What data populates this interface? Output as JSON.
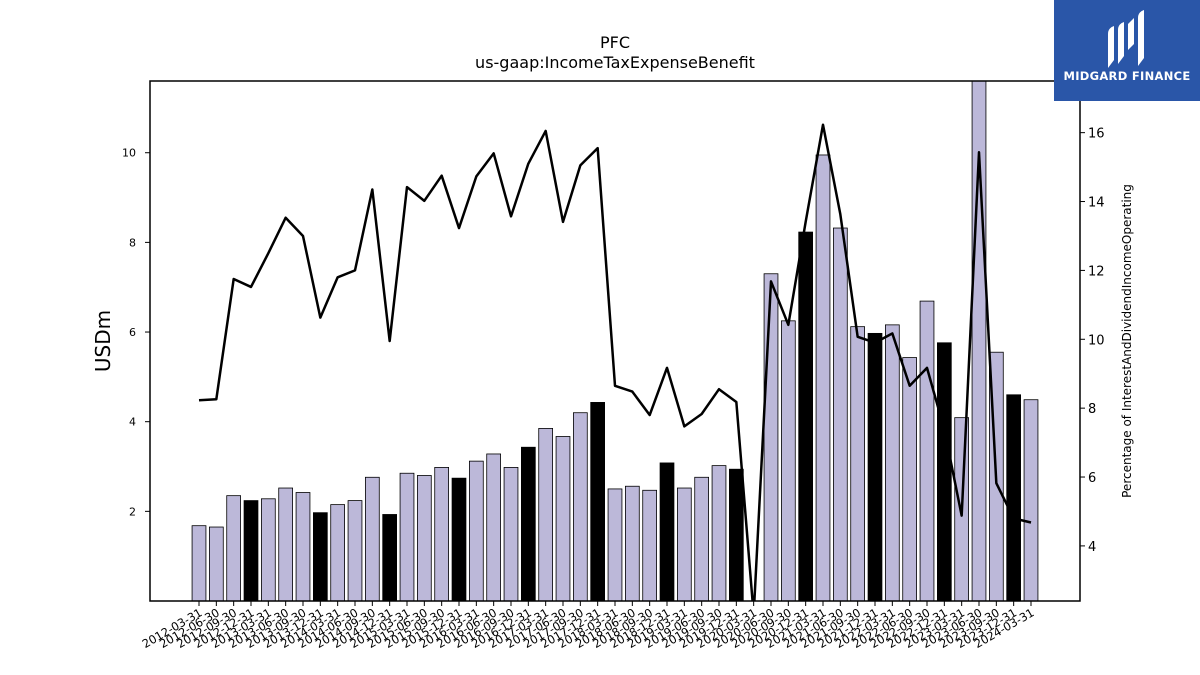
{
  "logo": {
    "text": "MIDGARD FINANCE",
    "background": "#2a56a8",
    "icon": "midgard-logo-icon"
  },
  "chart_data": {
    "type": "bar",
    "title": "PFC",
    "subtitle": "us-gaap:IncomeTaxExpenseBenefit",
    "ylabel": "USDm",
    "y2label": "Percentage of InterestAndDividendIncomeOperating",
    "ylim": [
      0,
      11.6
    ],
    "y2lim": [
      2.4,
      17.5
    ],
    "yticks": [
      2,
      4,
      6,
      8,
      10
    ],
    "y2ticks": [
      4,
      6,
      8,
      10,
      12,
      14,
      16
    ],
    "bar_color": "#bcb8d9",
    "highlight_color": "#000000",
    "categories": [
      "2012-03-31",
      "2012-06-30",
      "2012-09-30",
      "2012-12-31",
      "2013-03-31",
      "2013-06-30",
      "2013-09-30",
      "2013-12-31",
      "2014-03-31",
      "2014-06-30",
      "2014-09-30",
      "2014-12-31",
      "2015-03-31",
      "2015-06-30",
      "2015-09-30",
      "2015-12-31",
      "2016-03-31",
      "2016-06-30",
      "2016-09-30",
      "2016-12-31",
      "2017-03-31",
      "2017-06-30",
      "2017-09-30",
      "2017-12-31",
      "2018-03-31",
      "2018-06-30",
      "2018-09-30",
      "2018-12-31",
      "2019-03-31",
      "2019-06-30",
      "2019-09-30",
      "2019-12-31",
      "2020-03-31",
      "2020-06-30",
      "2020-09-30",
      "2020-12-31",
      "2021-03-31",
      "2021-06-30",
      "2021-09-30",
      "2021-12-31",
      "2022-03-31",
      "2022-06-30",
      "2022-09-30",
      "2022-12-31",
      "2023-03-31",
      "2023-06-30",
      "2023-09-30",
      "2023-12-31",
      "2024-03-31"
    ],
    "series": [
      {
        "kind": "bar",
        "axis": "left",
        "values": [
          1.68,
          1.65,
          2.35,
          2.24,
          2.28,
          2.52,
          2.42,
          1.97,
          2.15,
          2.24,
          2.76,
          1.93,
          2.85,
          2.8,
          2.98,
          2.74,
          3.12,
          3.28,
          2.98,
          3.43,
          3.85,
          3.67,
          4.2,
          4.43,
          2.5,
          2.56,
          2.47,
          3.08,
          2.52,
          2.76,
          3.02,
          2.94,
          0,
          7.3,
          6.25,
          8.23,
          9.95,
          8.32,
          6.12,
          5.97,
          6.16,
          5.43,
          6.69,
          5.76,
          4.09,
          11.6,
          5.55,
          4.6,
          4.49
        ],
        "highlight": [
          false,
          false,
          false,
          true,
          false,
          false,
          false,
          true,
          false,
          false,
          false,
          true,
          false,
          false,
          false,
          true,
          false,
          false,
          false,
          true,
          false,
          false,
          false,
          true,
          false,
          false,
          false,
          true,
          false,
          false,
          false,
          true,
          false,
          false,
          false,
          true,
          false,
          false,
          false,
          true,
          false,
          false,
          false,
          true,
          false,
          false,
          false,
          true,
          false
        ]
      },
      {
        "kind": "line",
        "axis": "right",
        "color": "#000000",
        "values": [
          8.23,
          8.26,
          11.75,
          11.52,
          12.5,
          13.53,
          13.0,
          10.63,
          11.8,
          12.0,
          14.35,
          9.95,
          14.42,
          14.02,
          14.75,
          13.23,
          14.73,
          15.4,
          13.57,
          15.1,
          16.05,
          13.41,
          15.05,
          15.55,
          8.65,
          8.48,
          7.8,
          9.17,
          7.47,
          7.83,
          8.55,
          8.18,
          2.0,
          11.68,
          10.42,
          13.41,
          16.23,
          13.63,
          10.07,
          9.9,
          10.17,
          8.65,
          9.17,
          7.38,
          4.88,
          15.43,
          5.82,
          4.8,
          4.68
        ]
      }
    ]
  }
}
